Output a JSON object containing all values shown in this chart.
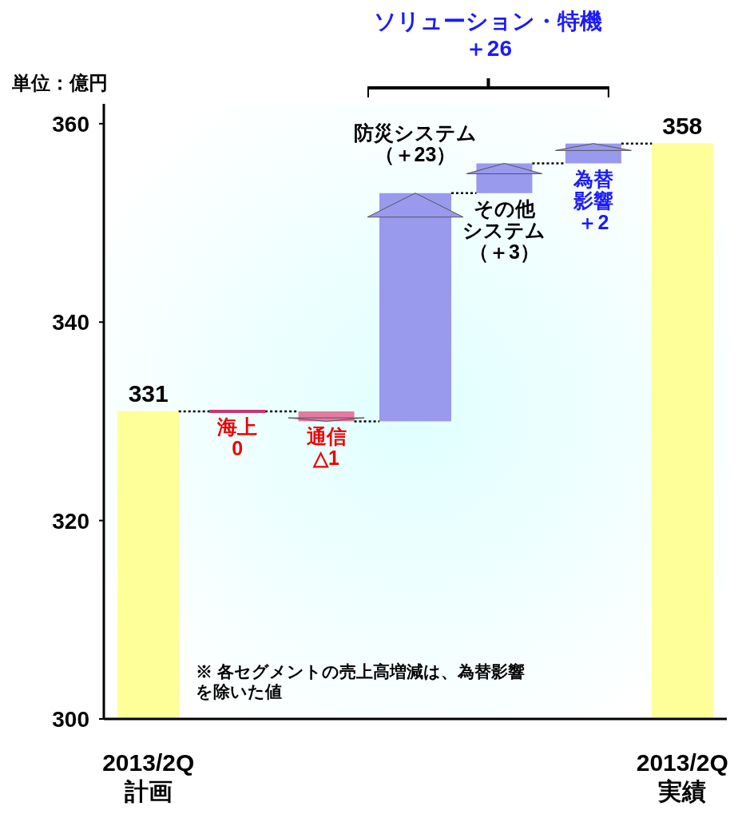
{
  "chart_data": {
    "type": "bar",
    "ylabel": "単位：億円",
    "categories": [
      "2013/2Q計画",
      "海上",
      "通信",
      "防災システム",
      "その他システム",
      "為替影響",
      "2013/2Q実績"
    ],
    "values": [
      331,
      0,
      -1,
      23,
      3,
      2,
      358
    ],
    "base": [
      null,
      331,
      331,
      330,
      353,
      356,
      null
    ],
    "colors": [
      "#ffff99",
      "#cc3377",
      "#e47aa2",
      "#9999ee",
      "#9999ee",
      "#9999ee",
      "#ffff99"
    ],
    "value_labels": [
      "331",
      "0",
      "△1",
      "（＋23）",
      "（＋3）",
      "＋2",
      "358"
    ],
    "ylim": [
      300,
      362
    ],
    "yticks": [
      300,
      320,
      340,
      360
    ],
    "annotations": [
      "ソリューション・特機＋26",
      "※ 各セグメントの売上高増減は、為替影響を除いた値"
    ]
  }
}
